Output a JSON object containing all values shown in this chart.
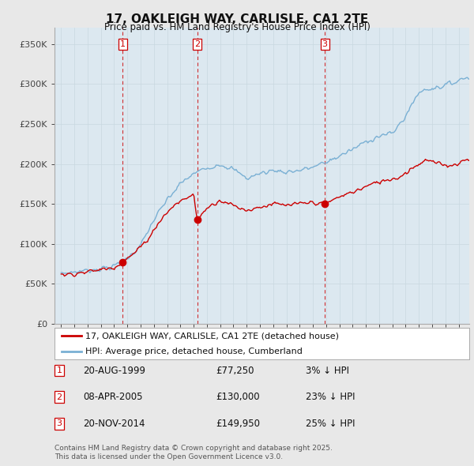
{
  "title": "17, OAKLEIGH WAY, CARLISLE, CA1 2TE",
  "subtitle": "Price paid vs. HM Land Registry's House Price Index (HPI)",
  "legend_line1": "17, OAKLEIGH WAY, CARLISLE, CA1 2TE (detached house)",
  "legend_line2": "HPI: Average price, detached house, Cumberland",
  "table": [
    {
      "num": "1",
      "date": "20-AUG-1999",
      "price": "£77,250",
      "hpi": "3% ↓ HPI"
    },
    {
      "num": "2",
      "date": "08-APR-2005",
      "price": "£130,000",
      "hpi": "23% ↓ HPI"
    },
    {
      "num": "3",
      "date": "20-NOV-2014",
      "price": "£149,950",
      "hpi": "25% ↓ HPI"
    }
  ],
  "footnote1": "Contains HM Land Registry data © Crown copyright and database right 2025.",
  "footnote2": "This data is licensed under the Open Government Licence v3.0.",
  "sale_dates": [
    1999.64,
    2005.27,
    2014.9
  ],
  "sale_prices": [
    77250,
    130000,
    149950
  ],
  "vline_color": "#cc0000",
  "red_line_color": "#cc0000",
  "blue_line_color": "#7ab0d4",
  "background_color": "#e8e8e8",
  "plot_bg_color": "#dce8f0",
  "ylim": [
    0,
    370000
  ],
  "xlim_start": 1994.5,
  "xlim_end": 2025.8,
  "yticks": [
    0,
    50000,
    100000,
    150000,
    200000,
    250000,
    300000,
    350000
  ],
  "ytick_labels": [
    "£0",
    "£50K",
    "£100K",
    "£150K",
    "£200K",
    "£250K",
    "£300K",
    "£350K"
  ]
}
